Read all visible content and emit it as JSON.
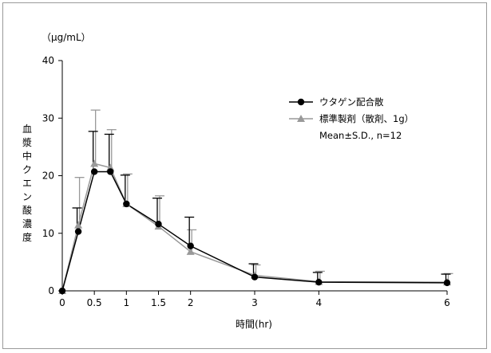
{
  "chart_data": {
    "type": "line",
    "ylabel": "血漿中クエン酸濃度",
    "unit_label": "（μg/mL）",
    "xlabel": "時間(hr)",
    "x_ticks": [
      0,
      0.5,
      1,
      1.5,
      2,
      3,
      4,
      6
    ],
    "x_tick_labels": [
      "0",
      "0.5",
      "1",
      "1.5",
      "2",
      "3",
      "4",
      "6"
    ],
    "y_ticks": [
      0,
      10,
      20,
      30,
      40
    ],
    "y_tick_labels": [
      "0",
      "10",
      "20",
      "30",
      "40"
    ],
    "xlim": [
      0,
      6
    ],
    "ylim": [
      0,
      40
    ],
    "grid": false,
    "legend_position": "top-right",
    "legend_note": "Mean±S.D., n=12",
    "series": [
      {
        "name": "ウタゲン配合散",
        "color": "#000000",
        "marker": "circle",
        "x": [
          0,
          0.25,
          0.5,
          0.75,
          1,
          1.5,
          2,
          3,
          4,
          6
        ],
        "y": [
          0,
          10.3,
          20.7,
          20.7,
          15.1,
          11.6,
          7.8,
          2.4,
          1.5,
          1.4
        ],
        "sd": [
          0,
          4.1,
          7.0,
          6.5,
          5.0,
          4.5,
          5.0,
          2.3,
          1.7,
          1.5
        ]
      },
      {
        "name": "標準製剤（散剤、1g）",
        "color": "#999999",
        "marker": "triangle",
        "x": [
          0,
          0.25,
          0.5,
          0.75,
          1,
          1.5,
          2,
          3,
          4,
          6
        ],
        "y": [
          0,
          11.4,
          22.1,
          21.4,
          15.1,
          11.2,
          6.8,
          2.7,
          1.6,
          1.5
        ],
        "sd": [
          0,
          8.3,
          9.3,
          6.6,
          5.2,
          5.3,
          3.8,
          1.8,
          1.8,
          1.5
        ]
      }
    ]
  }
}
